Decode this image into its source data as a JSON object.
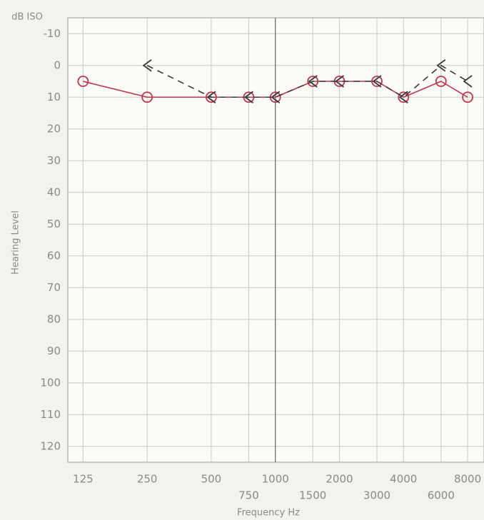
{
  "chart_data": {
    "type": "line",
    "y_title": "dB ISO",
    "y_label": "Hearing Level",
    "x_label": "Frequency Hz",
    "x": [
      125,
      250,
      500,
      750,
      1000,
      1500,
      2000,
      3000,
      4000,
      6000,
      8000
    ],
    "xscale": "log",
    "xlim": [
      106,
      9550
    ],
    "xticks": [
      125,
      250,
      500,
      750,
      1000,
      1500,
      2000,
      3000,
      4000,
      6000,
      8000
    ],
    "ylim": [
      -15,
      125
    ],
    "y_inverted": true,
    "yticks": [
      -10,
      0,
      10,
      20,
      30,
      40,
      50,
      60,
      70,
      80,
      90,
      100,
      110,
      120
    ],
    "grid": true,
    "series": [
      {
        "color": "#c6344c",
        "marker": "circle",
        "linestyle": "solid",
        "values": [
          5,
          10,
          10,
          10,
          10,
          5,
          5,
          5,
          10,
          5,
          10
        ]
      },
      {
        "color": "#3a3a3a",
        "marker": "<",
        "linestyle": "dash",
        "values": [
          null,
          0,
          10,
          10,
          10,
          5,
          5,
          5,
          10,
          0,
          5
        ]
      }
    ]
  }
}
